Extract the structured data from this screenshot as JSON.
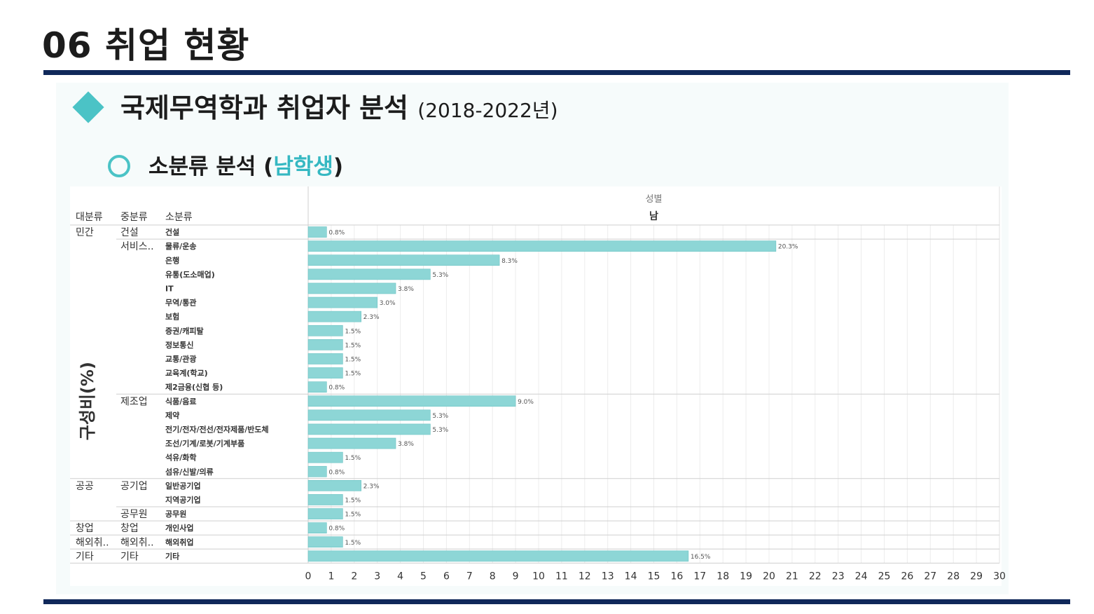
{
  "page": {
    "title": "06 취업 현황",
    "section_title": "국제무역학과 취업자 분석",
    "section_years": "(2018-2022년)",
    "sub_title_prefix": "소분류 분석 (",
    "sub_title_accent": "남학생",
    "sub_title_suffix": ")",
    "accent_color": "#4bc3c6",
    "rule_color": "#10285a"
  },
  "chart_data": {
    "type": "bar",
    "orientation": "horizontal",
    "header_top": "성별",
    "header_column": "남",
    "row_headers": [
      "대분류",
      "중분류",
      "소분류"
    ],
    "ylabel": "구성비(%)",
    "bar_color": "#8dd6d6",
    "xlim": [
      0,
      30
    ],
    "xticks": [
      0,
      1,
      2,
      3,
      4,
      5,
      6,
      7,
      8,
      9,
      10,
      11,
      12,
      13,
      14,
      15,
      16,
      17,
      18,
      19,
      20,
      21,
      22,
      23,
      24,
      25,
      26,
      27,
      28,
      29,
      30
    ],
    "rows": [
      {
        "major": "민간",
        "mid": "건설",
        "minor": "건설",
        "value": 0.8,
        "label": "0.8%"
      },
      {
        "major": "",
        "mid": "서비스..",
        "minor": "물류/운송",
        "value": 20.3,
        "label": "20.3%"
      },
      {
        "major": "",
        "mid": "",
        "minor": "은행",
        "value": 8.3,
        "label": "8.3%"
      },
      {
        "major": "",
        "mid": "",
        "minor": "유통(도소매업)",
        "value": 5.3,
        "label": "5.3%"
      },
      {
        "major": "",
        "mid": "",
        "minor": "IT",
        "value": 3.8,
        "label": "3.8%"
      },
      {
        "major": "",
        "mid": "",
        "minor": "무역/통관",
        "value": 3.0,
        "label": "3.0%"
      },
      {
        "major": "",
        "mid": "",
        "minor": "보험",
        "value": 2.3,
        "label": "2.3%"
      },
      {
        "major": "",
        "mid": "",
        "minor": "증권/캐피탈",
        "value": 1.5,
        "label": "1.5%"
      },
      {
        "major": "",
        "mid": "",
        "minor": "정보통신",
        "value": 1.5,
        "label": "1.5%"
      },
      {
        "major": "",
        "mid": "",
        "minor": "교통/관광",
        "value": 1.5,
        "label": "1.5%"
      },
      {
        "major": "",
        "mid": "",
        "minor": "교육계(학교)",
        "value": 1.5,
        "label": "1.5%"
      },
      {
        "major": "",
        "mid": "",
        "minor": "제2금융(신협 등)",
        "value": 0.8,
        "label": "0.8%"
      },
      {
        "major": "",
        "mid": "제조업",
        "minor": "식품/음료",
        "value": 9.0,
        "label": "9.0%"
      },
      {
        "major": "",
        "mid": "",
        "minor": "제약",
        "value": 5.3,
        "label": "5.3%"
      },
      {
        "major": "",
        "mid": "",
        "minor": "전기/전자/전선/전자제품/반도체",
        "value": 5.3,
        "label": "5.3%"
      },
      {
        "major": "",
        "mid": "",
        "minor": "조선/기계/로봇/기계부품",
        "value": 3.8,
        "label": "3.8%"
      },
      {
        "major": "",
        "mid": "",
        "minor": "석유/화학",
        "value": 1.5,
        "label": "1.5%"
      },
      {
        "major": "",
        "mid": "",
        "minor": "섬유/신발/의류",
        "value": 0.8,
        "label": "0.8%"
      },
      {
        "major": "공공",
        "mid": "공기업",
        "minor": "일반공기업",
        "value": 2.3,
        "label": "2.3%"
      },
      {
        "major": "",
        "mid": "",
        "minor": "지역공기업",
        "value": 1.5,
        "label": "1.5%"
      },
      {
        "major": "",
        "mid": "공무원",
        "minor": "공무원",
        "value": 1.5,
        "label": "1.5%"
      },
      {
        "major": "창업",
        "mid": "창업",
        "minor": "개인사업",
        "value": 0.8,
        "label": "0.8%"
      },
      {
        "major": "해외취..",
        "mid": "해외취..",
        "minor": "해외취업",
        "value": 1.5,
        "label": "1.5%"
      },
      {
        "major": "기타",
        "mid": "기타",
        "minor": "기타",
        "value": 16.5,
        "label": "16.5%"
      }
    ]
  }
}
